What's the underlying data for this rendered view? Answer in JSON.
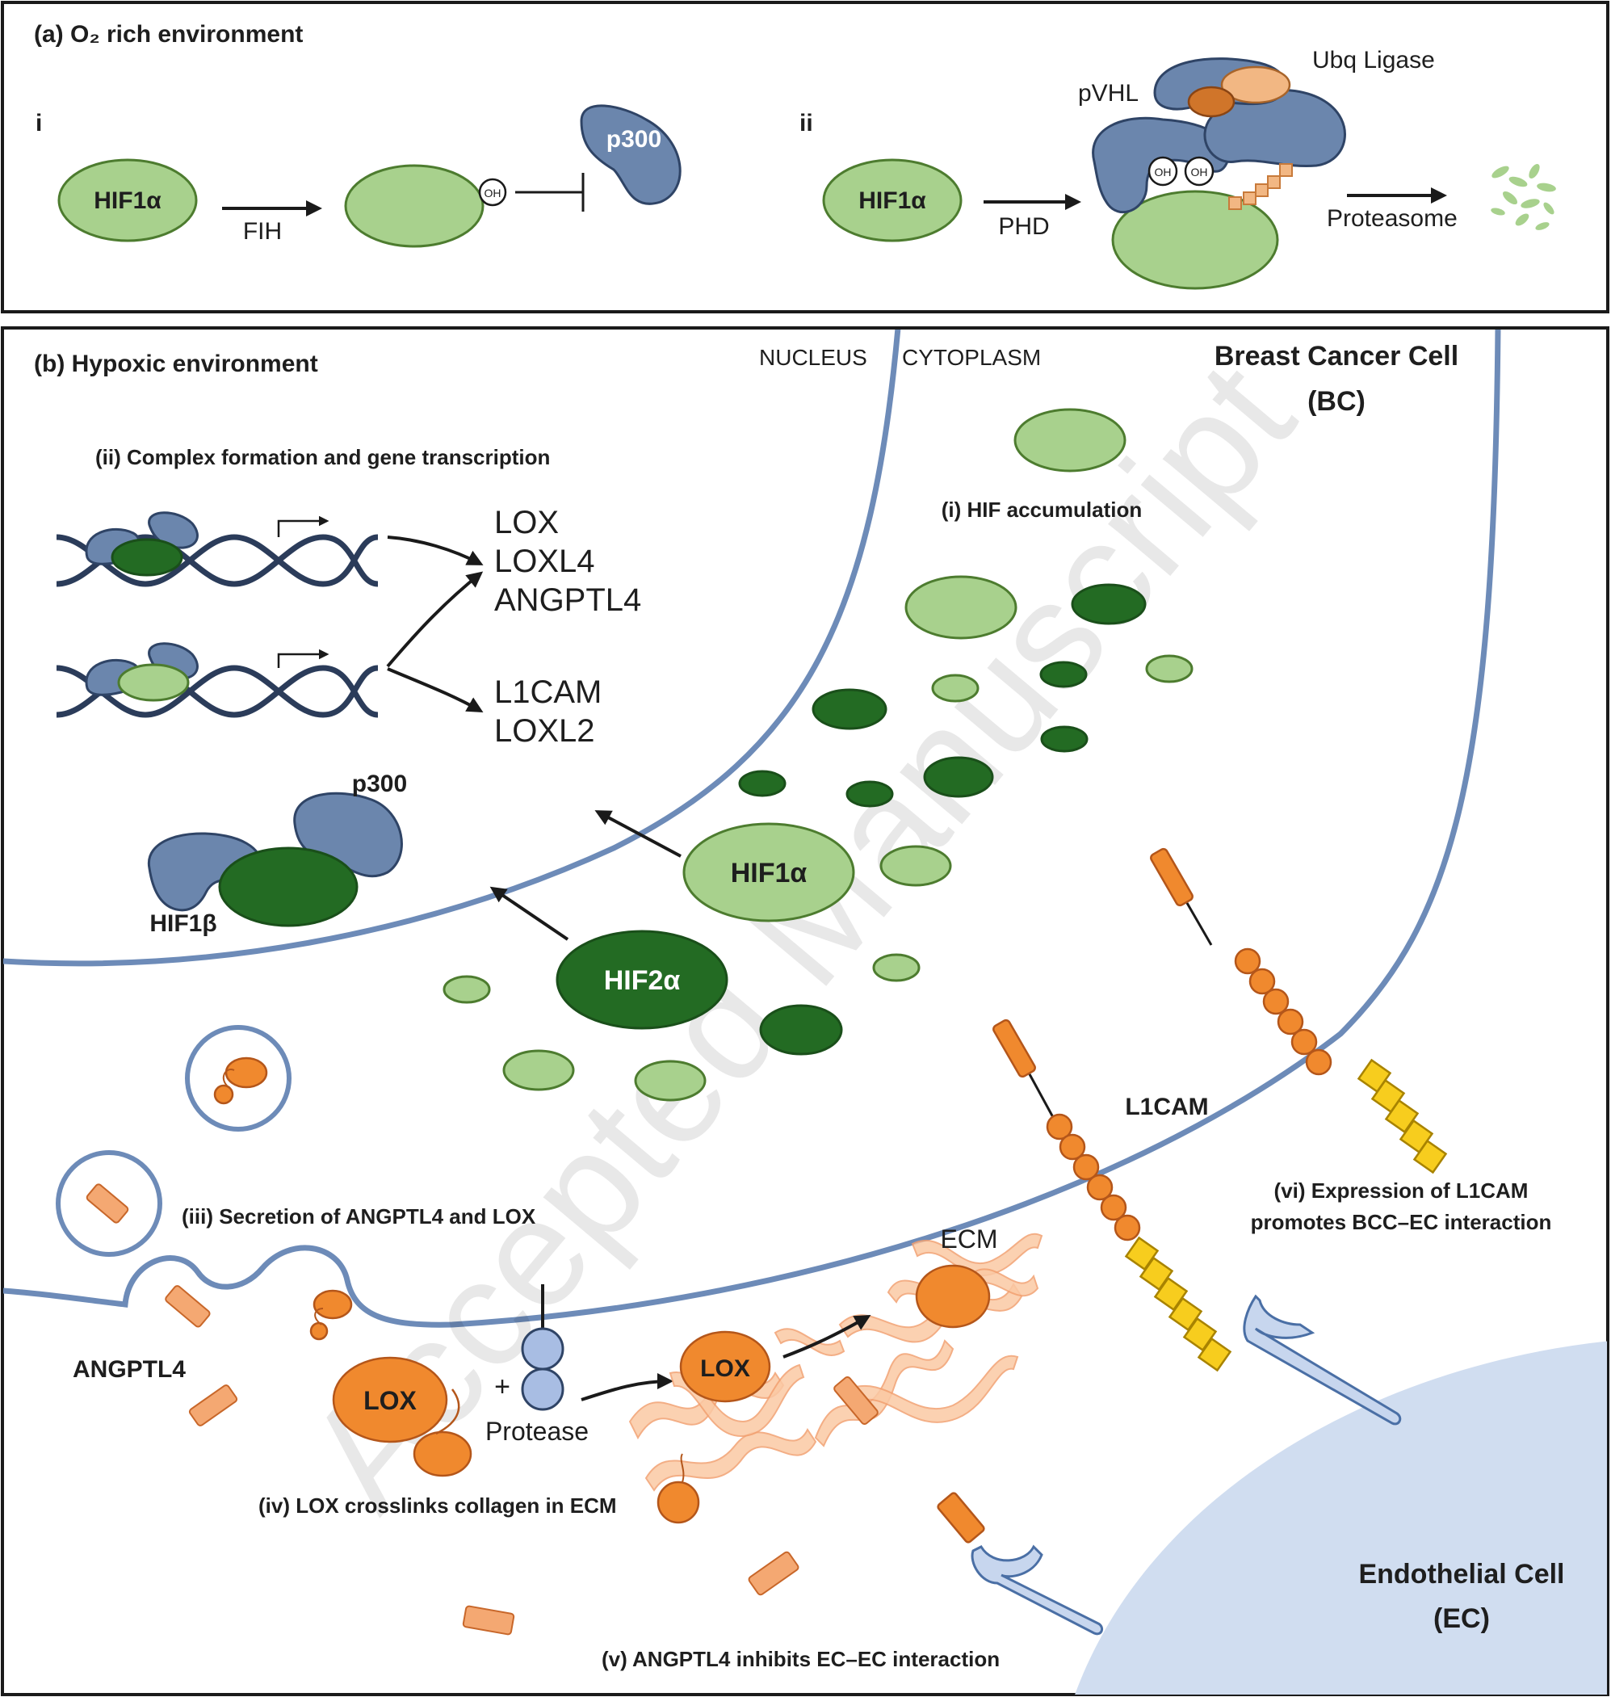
{
  "panel_a": {
    "title": "(a)  O₂ rich environment",
    "sub_i": "i",
    "sub_ii": "ii",
    "hif1a_i": "HIF1α",
    "fih": "FIH",
    "oh": "OH",
    "p300_i": "p300",
    "hif1a_ii": "HIF1α",
    "phd": "PHD",
    "pvhl": "pVHL",
    "ubq": "Ubq Ligase",
    "proteasome": "Proteasome"
  },
  "panel_b": {
    "title": "(b) Hypoxic environment",
    "nucleus": "NUCLEUS",
    "cytoplasm": "CYTOPLASM",
    "bc_line1": "Breast Cancer Cell",
    "bc_line2": "(BC)",
    "step_i": "(i) HIF accumulation",
    "step_ii": "(ii) Complex formation and gene transcription",
    "genes_top": [
      "LOX",
      "LOXL4",
      "ANGPTL4"
    ],
    "genes_bottom": [
      "L1CAM",
      "LOXL2"
    ],
    "p300_b": "p300",
    "hif1b": "HIF1β",
    "hif1a_b": "HIF1α",
    "hif2a_b": "HIF2α",
    "step_iii": "(iii) Secretion of ANGPTL4 and LOX",
    "angptl4": "ANGPTL4",
    "lox1": "LOX",
    "lox2": "LOX",
    "plus": "+",
    "protease": "Protease",
    "ecm": "ECM",
    "l1cam": "L1CAM",
    "step_iv": "(iv) LOX crosslinks collagen in ECM",
    "step_v": "(v) ANGPTL4 inhibits EC–EC interaction",
    "step_vi_line1": "(vi) Expression of L1CAM",
    "step_vi_line2": "promotes BCC–EC interaction",
    "ec_line1": "Endothelial Cell",
    "ec_line2": "(EC)"
  },
  "watermark": "Accepted Manuscript",
  "colors": {
    "light_green": "#a8d18d",
    "dark_green": "#236b23",
    "blue": "#6b86ad",
    "orange": "#f0892e",
    "yellow": "#f7cd1e",
    "membrane": "#6d8bb8",
    "endothelial": "#d0ddf0"
  }
}
